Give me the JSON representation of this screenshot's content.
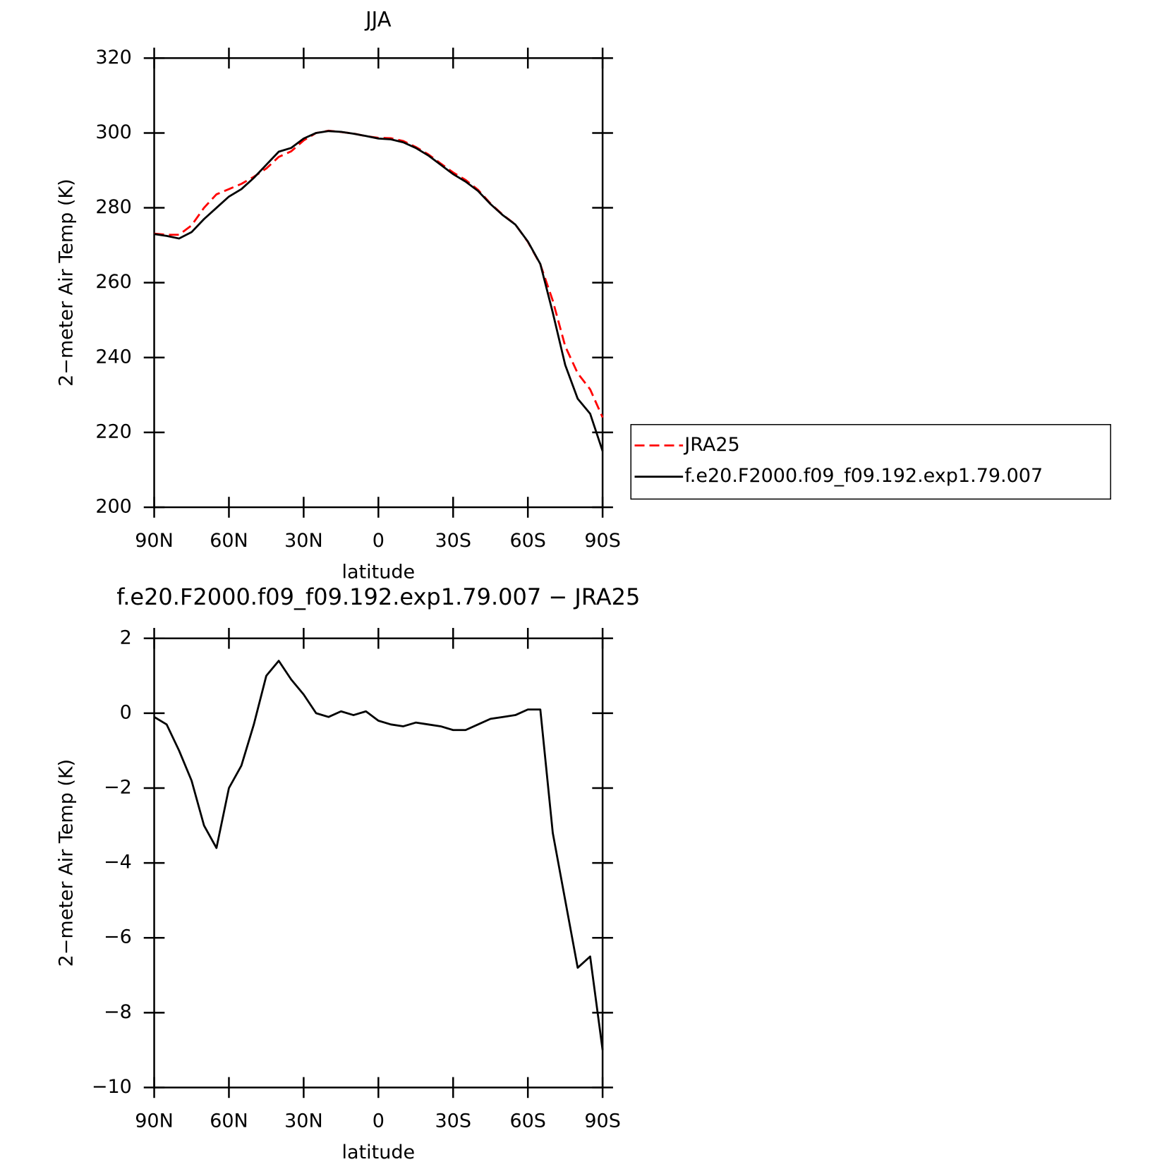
{
  "chart_data": [
    {
      "type": "line",
      "title": "JJA",
      "xlabel": "latitude",
      "ylabel": "2−meter Air Temp (K)",
      "x": [
        90,
        85,
        80,
        75,
        70,
        65,
        60,
        55,
        50,
        45,
        40,
        35,
        30,
        25,
        20,
        15,
        10,
        5,
        0,
        -5,
        -10,
        -15,
        -20,
        -25,
        -30,
        -35,
        -40,
        -45,
        -50,
        -55,
        -60,
        -65,
        -70,
        -75,
        -80,
        -85,
        -90
      ],
      "xlim": [
        90,
        -90
      ],
      "xticks": [
        {
          "value": 90,
          "label": "90N"
        },
        {
          "value": 60,
          "label": "60N"
        },
        {
          "value": 30,
          "label": "30N"
        },
        0,
        {
          "value": -30,
          "label": "30S"
        },
        {
          "value": -60,
          "label": "60S"
        },
        {
          "value": -90,
          "label": "90S"
        }
      ],
      "ylim": [
        200,
        320
      ],
      "yticks": [
        200,
        220,
        240,
        260,
        280,
        300,
        320
      ],
      "legend": "right",
      "series": [
        {
          "name": "JRA25",
          "color": "#ff0000",
          "line_style": "dashed",
          "values": [
            273.1,
            272.8,
            272.8,
            275.3,
            280,
            283.6,
            285,
            286.4,
            288.3,
            290.5,
            293.6,
            295.1,
            298,
            300,
            300.6,
            300.25,
            299.85,
            299.15,
            298.7,
            298.6,
            297.85,
            296.25,
            294.3,
            291.85,
            289.45,
            287.45,
            284.8,
            281.15,
            278.1,
            275.55,
            270.9,
            264.9,
            255.2,
            243,
            235.8,
            231.5,
            224
          ]
        },
        {
          "name": "f.e20.F2000.f09_f09.192.exp1.79.007",
          "color": "#000000",
          "line_style": "solid",
          "values": [
            273,
            272.5,
            271.8,
            273.5,
            277,
            280,
            283,
            285,
            288,
            291.5,
            295,
            296,
            298.5,
            300,
            300.5,
            300.3,
            299.8,
            299.2,
            298.5,
            298.3,
            297.5,
            296,
            294,
            291.5,
            289,
            287,
            284.5,
            281,
            278,
            275.5,
            271,
            265,
            252,
            238,
            229,
            225,
            215
          ]
        }
      ]
    },
    {
      "type": "line",
      "title": "f.e20.F2000.f09_f09.192.exp1.79.007 − JRA25",
      "xlabel": "latitude",
      "ylabel": "2−meter Air Temp (K)",
      "x": [
        90,
        85,
        80,
        75,
        70,
        65,
        60,
        55,
        50,
        45,
        40,
        35,
        30,
        25,
        20,
        15,
        10,
        5,
        0,
        -5,
        -10,
        -15,
        -20,
        -25,
        -30,
        -35,
        -40,
        -45,
        -50,
        -55,
        -60,
        -65,
        -70,
        -75,
        -80,
        -85,
        -90
      ],
      "xlim": [
        90,
        -90
      ],
      "xticks": [
        {
          "value": 90,
          "label": "90N"
        },
        {
          "value": 60,
          "label": "60N"
        },
        {
          "value": 30,
          "label": "30N"
        },
        0,
        {
          "value": -30,
          "label": "30S"
        },
        {
          "value": -60,
          "label": "60S"
        },
        {
          "value": -90,
          "label": "90S"
        }
      ],
      "ylim": [
        -10,
        2
      ],
      "yticks": [
        {
          "value": -10,
          "label": "−10"
        },
        {
          "value": -8,
          "label": "−8"
        },
        {
          "value": -6,
          "label": "−6"
        },
        {
          "value": -4,
          "label": "−4"
        },
        {
          "value": -2,
          "label": "−2"
        },
        0,
        2
      ],
      "series": [
        {
          "color": "#000000",
          "line_style": "solid",
          "values": [
            -0.1,
            -0.3,
            -1,
            -1.8,
            -3,
            -3.6,
            -2,
            -1.4,
            -0.3,
            1,
            1.4,
            0.9,
            0.5,
            0,
            -0.1,
            0.05,
            -0.05,
            0.05,
            -0.2,
            -0.3,
            -0.35,
            -0.25,
            -0.3,
            -0.35,
            -0.45,
            -0.45,
            -0.3,
            -0.15,
            -0.1,
            -0.05,
            0.1,
            0.1,
            -3.2,
            -5,
            -6.8,
            -6.5,
            -9
          ]
        }
      ]
    }
  ]
}
